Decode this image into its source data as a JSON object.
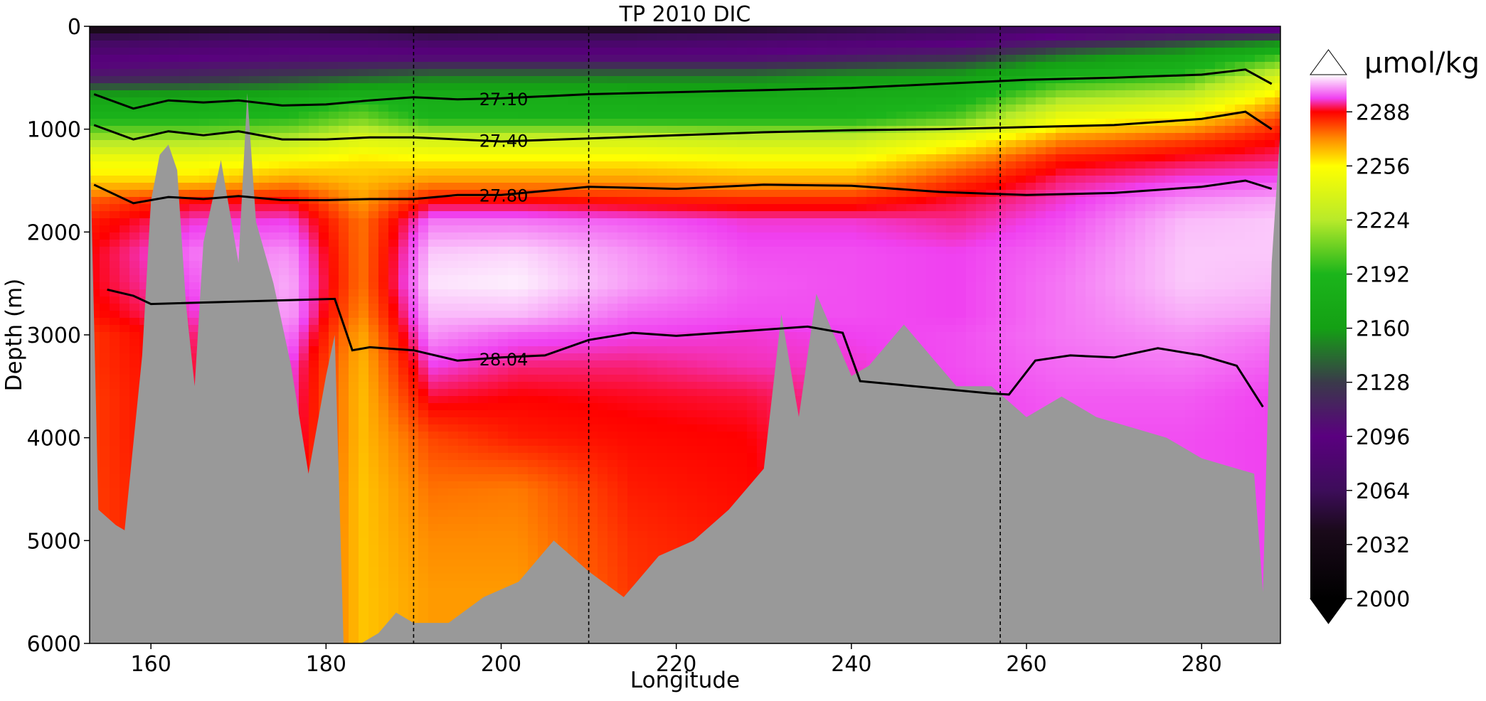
{
  "chart_data": {
    "type": "heatmap",
    "title": "TP 2010 DIC",
    "xlabel": "Longitude",
    "ylabel": "Depth (m)",
    "xlim": [
      153,
      289
    ],
    "ylim": [
      6000,
      0
    ],
    "x_ticks": [
      160,
      180,
      200,
      220,
      240,
      260,
      280
    ],
    "y_ticks": [
      0,
      1000,
      2000,
      3000,
      4000,
      5000,
      6000
    ],
    "y_inverted": true,
    "colorbar": {
      "unit_label": "µmol/kg",
      "ticks": [
        2000,
        2032,
        2064,
        2096,
        2128,
        2160,
        2192,
        2224,
        2256,
        2288
      ],
      "range": [
        2000,
        2310
      ],
      "extend": "both",
      "colors": {
        "2000": "#000000",
        "2040": "#1a0a1a",
        "2064": "#3d0d5a",
        "2096": "#5a007f",
        "2128": "#3a3a4a",
        "2160": "#14a014",
        "2192": "#1bb51b",
        "2224": "#b8ea2a",
        "2256": "#ffff00",
        "2272": "#ff8c00",
        "2288": "#ff0000",
        "2296": "#f040f0",
        "2310": "#ffffff"
      }
    },
    "isopycnals": [
      {
        "label": "27.10",
        "x": [
          153.5,
          158,
          162,
          166,
          170,
          175,
          180,
          185,
          190,
          195,
          200,
          210,
          220,
          230,
          240,
          250,
          260,
          270,
          280,
          285,
          288
        ],
        "y": [
          660,
          800,
          720,
          740,
          720,
          770,
          760,
          720,
          690,
          710,
          700,
          660,
          640,
          620,
          600,
          560,
          520,
          500,
          470,
          420,
          560
        ]
      },
      {
        "label": "27.40",
        "x": [
          153.5,
          158,
          162,
          166,
          170,
          175,
          180,
          185,
          190,
          195,
          200,
          210,
          220,
          230,
          240,
          250,
          260,
          270,
          280,
          285,
          288
        ],
        "y": [
          960,
          1100,
          1020,
          1060,
          1020,
          1100,
          1100,
          1080,
          1080,
          1100,
          1120,
          1090,
          1060,
          1030,
          1010,
          1000,
          980,
          960,
          900,
          830,
          1000
        ]
      },
      {
        "label": "27.80",
        "x": [
          153.5,
          158,
          162,
          166,
          170,
          175,
          180,
          185,
          190,
          195,
          200,
          210,
          220,
          230,
          240,
          250,
          260,
          270,
          280,
          285,
          288
        ],
        "y": [
          1540,
          1720,
          1660,
          1680,
          1650,
          1690,
          1690,
          1680,
          1680,
          1640,
          1640,
          1560,
          1580,
          1540,
          1550,
          1610,
          1640,
          1620,
          1560,
          1500,
          1580
        ]
      },
      {
        "label": "28.04",
        "x": [
          155,
          158,
          160,
          181,
          182,
          183,
          185,
          190,
          195,
          200,
          205,
          210,
          215,
          220,
          225,
          230,
          235,
          239,
          241,
          256,
          258,
          261,
          265,
          270,
          275,
          280,
          284,
          287
        ],
        "y": [
          2560,
          2620,
          2700,
          2650,
          2900,
          3150,
          3120,
          3150,
          3250,
          3220,
          3200,
          3050,
          2980,
          3010,
          2980,
          2950,
          2920,
          2980,
          3450,
          3570,
          3580,
          3250,
          3200,
          3220,
          3130,
          3200,
          3300,
          3700
        ]
      }
    ],
    "section_markers_lon": [
      190,
      210,
      257
    ],
    "bathymetry": {
      "lon": [
        153,
        154,
        156,
        157,
        159,
        160,
        161,
        162,
        163,
        164,
        165,
        166,
        168,
        170,
        171,
        172,
        174,
        176,
        178,
        180,
        181,
        182,
        184,
        186,
        188,
        190,
        194,
        198,
        202,
        206,
        210,
        214,
        218,
        222,
        226,
        230,
        232,
        234,
        236,
        238,
        240,
        242,
        246,
        250,
        252,
        256,
        260,
        264,
        268,
        272,
        276,
        280,
        284,
        286,
        287,
        288,
        289
      ],
      "depth": [
        1000,
        4700,
        4850,
        4900,
        3200,
        1700,
        1250,
        1150,
        1400,
        2700,
        3500,
        2100,
        1300,
        2300,
        650,
        1900,
        2500,
        3300,
        4350,
        3400,
        3000,
        6000,
        6000,
        5900,
        5700,
        5800,
        5800,
        5550,
        5400,
        5000,
        5300,
        5550,
        5150,
        5000,
        4700,
        4300,
        2800,
        3800,
        2600,
        3000,
        3400,
        3300,
        2900,
        3300,
        3500,
        3500,
        3800,
        3600,
        3800,
        3900,
        4000,
        4200,
        4300,
        4350,
        5500,
        2300,
        1000
      ]
    },
    "field": {
      "profile_depth_m": [
        0,
        150,
        300,
        500,
        700,
        900,
        1100,
        1300,
        1500,
        1700,
        1900,
        2200,
        2500,
        2800,
        3000,
        3300,
        3600,
        4000,
        4500,
        5000,
        5500,
        6000
      ],
      "profiles": [
        {
          "lon": 153,
          "dic": [
            2030,
            2070,
            2090,
            2110,
            2170,
            2190,
            2220,
            2250,
            2262,
            2278,
            2285,
            2288,
            2288,
            2286,
            2282,
            2282,
            2281,
            2281,
            2281,
            2281,
            2281,
            2281
          ]
        },
        {
          "lon": 165,
          "dic": [
            2035,
            2075,
            2095,
            2120,
            2170,
            2190,
            2220,
            2250,
            2262,
            2288,
            2295,
            2300,
            2298,
            2295,
            2292,
            2290,
            2290,
            2290,
            2288,
            2288,
            2288,
            2288
          ]
        },
        {
          "lon": 176,
          "dic": [
            2040,
            2080,
            2100,
            2130,
            2180,
            2195,
            2225,
            2255,
            2270,
            2288,
            2296,
            2302,
            2304,
            2303,
            2300,
            2296,
            2295,
            2294,
            2292,
            2290,
            2290,
            2290
          ]
        },
        {
          "lon": 184,
          "dic": [
            2035,
            2080,
            2100,
            2140,
            2190,
            2210,
            2240,
            2260,
            2265,
            2270,
            2275,
            2275,
            2275,
            2272,
            2268,
            2266,
            2265,
            2265,
            2264,
            2264,
            2264,
            2264
          ]
        },
        {
          "lon": 192,
          "dic": [
            2030,
            2075,
            2100,
            2150,
            2180,
            2190,
            2235,
            2258,
            2270,
            2288,
            2300,
            2306,
            2308,
            2305,
            2302,
            2296,
            2290,
            2280,
            2275,
            2272,
            2270,
            2270
          ]
        },
        {
          "lon": 202,
          "dic": [
            2035,
            2075,
            2100,
            2150,
            2180,
            2190,
            2235,
            2258,
            2270,
            2288,
            2300,
            2307,
            2309,
            2305,
            2298,
            2292,
            2288,
            2285,
            2274,
            2272,
            2270,
            2270
          ]
        },
        {
          "lon": 215,
          "dic": [
            2035,
            2075,
            2100,
            2150,
            2178,
            2190,
            2235,
            2258,
            2270,
            2286,
            2298,
            2302,
            2303,
            2299,
            2296,
            2292,
            2289,
            2287,
            2285,
            2283,
            2282,
            2282
          ]
        },
        {
          "lon": 228,
          "dic": [
            2040,
            2080,
            2100,
            2150,
            2175,
            2190,
            2230,
            2255,
            2268,
            2285,
            2295,
            2297,
            2298,
            2297,
            2295,
            2294,
            2290,
            2288,
            2287,
            2286,
            2286,
            2286
          ]
        },
        {
          "lon": 240,
          "dic": [
            2050,
            2085,
            2110,
            2160,
            2180,
            2190,
            2230,
            2255,
            2268,
            2285,
            2295,
            2297,
            2297,
            2297,
            2296,
            2295,
            2294,
            2294,
            2294,
            2294,
            2294,
            2294
          ]
        },
        {
          "lon": 252,
          "dic": [
            2060,
            2090,
            2120,
            2165,
            2185,
            2205,
            2250,
            2270,
            2282,
            2290,
            2293,
            2296,
            2296,
            2296,
            2297,
            2297,
            2296,
            2296,
            2296,
            2296,
            2296,
            2296
          ]
        },
        {
          "lon": 264,
          "dic": [
            2070,
            2110,
            2150,
            2190,
            2220,
            2250,
            2272,
            2286,
            2292,
            2295,
            2297,
            2299,
            2300,
            2300,
            2300,
            2299,
            2298,
            2297,
            2297,
            2297,
            2297,
            2297
          ]
        },
        {
          "lon": 278,
          "dic": [
            2075,
            2130,
            2170,
            2200,
            2232,
            2260,
            2280,
            2290,
            2296,
            2302,
            2305,
            2306,
            2306,
            2304,
            2302,
            2300,
            2298,
            2297,
            2297,
            2297,
            2297,
            2297
          ]
        },
        {
          "lon": 289,
          "dic": [
            2080,
            2150,
            2200,
            2240,
            2265,
            2280,
            2288,
            2292,
            2297,
            2304,
            2306,
            2306,
            2305,
            2303,
            2300,
            2298,
            2296,
            2296,
            2296,
            2296,
            2296,
            2296
          ]
        }
      ]
    }
  }
}
